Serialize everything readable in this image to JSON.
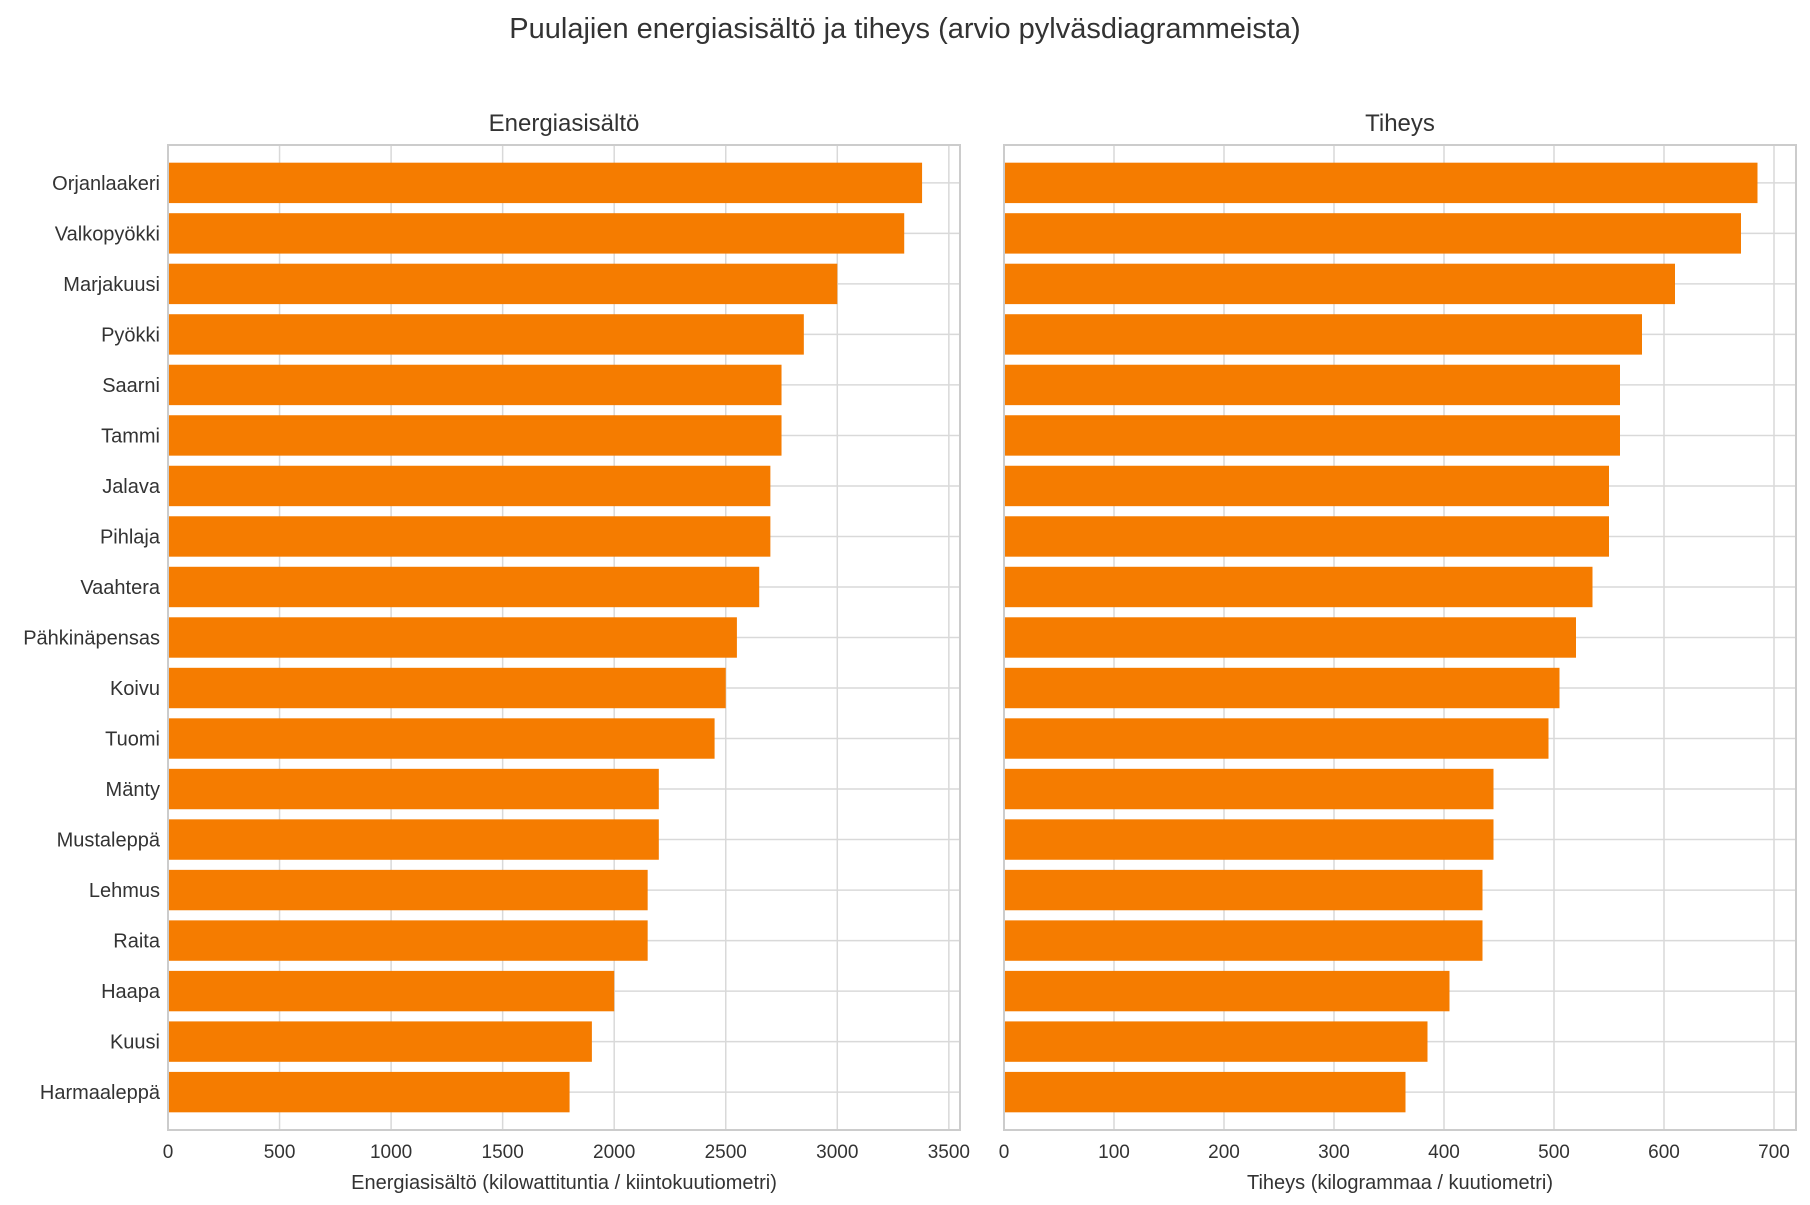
{
  "title": "Puulajien energiasisältö ja tiheys (arvio pylväsdiagrammeista)",
  "colors": {
    "bar": "#f57c00",
    "grid": "#d9d9d9",
    "frame": "#cccccc",
    "text": "#333333"
  },
  "chart_data": [
    {
      "type": "bar",
      "orientation": "horizontal",
      "title": "Energiasisältö",
      "xlabel": "Energiasisältö (kilowattituntia / kiintokuutiometri)",
      "ylabel": "",
      "xlim": [
        0,
        3550
      ],
      "xticks": [
        0,
        500,
        1000,
        1500,
        2000,
        2500,
        3000,
        3500
      ],
      "grid": true,
      "categories": [
        "Orjanlaakeri",
        "Valkopyökki",
        "Marjakuusi",
        "Pyökki",
        "Saarni",
        "Tammi",
        "Jalava",
        "Pihlaja",
        "Vaahtera",
        "Pähkinäpensas",
        "Koivu",
        "Tuomi",
        "Mänty",
        "Mustaleppä",
        "Lehmus",
        "Raita",
        "Haapa",
        "Kuusi",
        "Harmaaleppä"
      ],
      "values": [
        3380,
        3300,
        3000,
        2850,
        2750,
        2750,
        2700,
        2700,
        2650,
        2550,
        2500,
        2450,
        2200,
        2200,
        2150,
        2150,
        2000,
        1900,
        1800
      ]
    },
    {
      "type": "bar",
      "orientation": "horizontal",
      "title": "Tiheys",
      "xlabel": "Tiheys (kilogrammaa / kuutiometri)",
      "ylabel": "",
      "xlim": [
        0,
        720
      ],
      "xticks": [
        0,
        100,
        200,
        300,
        400,
        500,
        600,
        700
      ],
      "grid": true,
      "categories": [
        "Orjanlaakeri",
        "Valkopyökki",
        "Marjakuusi",
        "Pyökki",
        "Saarni",
        "Tammi",
        "Jalava",
        "Pihlaja",
        "Vaahtera",
        "Pähkinäpensas",
        "Koivu",
        "Tuomi",
        "Mänty",
        "Mustaleppä",
        "Lehmus",
        "Raita",
        "Haapa",
        "Kuusi",
        "Harmaaleppä"
      ],
      "values": [
        685,
        670,
        610,
        580,
        560,
        560,
        550,
        550,
        535,
        520,
        505,
        495,
        445,
        445,
        435,
        435,
        405,
        385,
        365
      ]
    }
  ]
}
